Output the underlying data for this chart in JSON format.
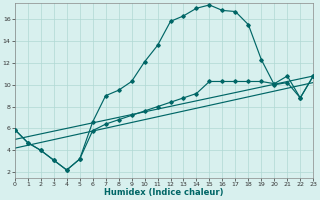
{
  "xlabel": "Humidex (Indice chaleur)",
  "bg_color": "#d8f0ee",
  "line_color": "#006666",
  "grid_color": "#b0d8d4",
  "xlim": [
    0,
    23
  ],
  "ylim": [
    1.5,
    17.5
  ],
  "xticks": [
    0,
    1,
    2,
    3,
    4,
    5,
    6,
    7,
    8,
    9,
    10,
    11,
    12,
    13,
    14,
    15,
    16,
    17,
    18,
    19,
    20,
    21,
    22,
    23
  ],
  "yticks": [
    2,
    4,
    6,
    8,
    10,
    12,
    14,
    16
  ],
  "curve1_x": [
    0,
    1,
    2,
    3,
    4,
    5,
    6,
    7,
    8,
    9,
    10,
    11,
    12,
    13,
    14,
    15,
    16,
    17,
    18,
    19,
    20,
    21,
    22,
    23
  ],
  "curve1_y": [
    5.9,
    4.7,
    4.0,
    3.1,
    2.2,
    3.2,
    6.6,
    9.0,
    9.5,
    10.3,
    12.1,
    13.6,
    15.8,
    16.3,
    17.0,
    17.3,
    16.8,
    16.7,
    15.5,
    12.3,
    10.0,
    10.2,
    8.8,
    10.8
  ],
  "curve2_x": [
    0,
    1,
    2,
    3,
    4,
    5,
    6,
    7,
    8,
    9,
    10,
    11,
    12,
    13,
    14,
    15,
    16,
    17,
    18,
    19,
    20,
    21,
    22,
    23
  ],
  "curve2_y": [
    5.9,
    4.7,
    4.0,
    3.1,
    2.2,
    3.2,
    5.8,
    6.4,
    6.8,
    7.2,
    7.6,
    8.0,
    8.4,
    8.8,
    9.2,
    10.3,
    10.3,
    10.3,
    10.3,
    10.3,
    10.1,
    10.8,
    8.8,
    10.8
  ],
  "line1_x": [
    0,
    23
  ],
  "line1_y": [
    5.0,
    10.8
  ],
  "line2_x": [
    0,
    23
  ],
  "line2_y": [
    4.2,
    10.2
  ]
}
